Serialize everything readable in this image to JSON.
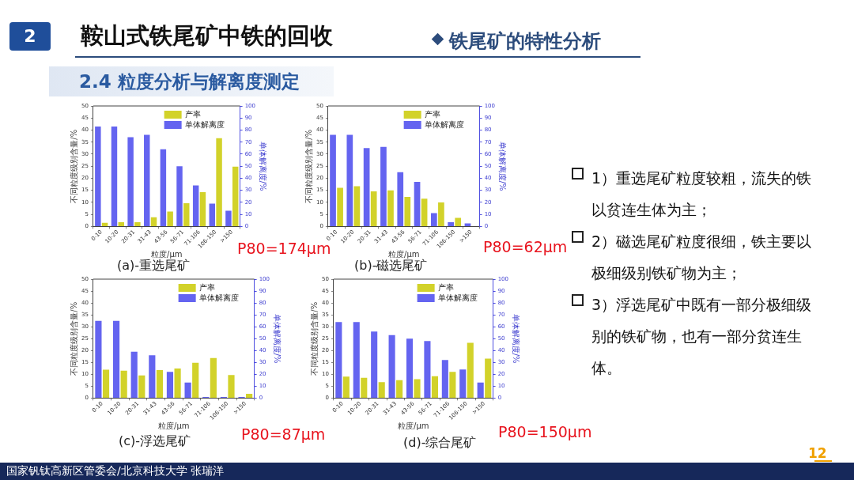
{
  "chart_data": [
    {
      "type": "other",
      "title": "鞍山式铁尾矿中铁的回收",
      "subtitle": "铁尾矿的特性分析",
      "annotations": [
        "2",
        "2.4 粒度分析与解离度测定",
        "1）重选尾矿粒度较粗，流失的铁以贫连生体为主；",
        "2）磁选尾矿粒度很细，铁主要以极细级别铁矿物为主；",
        "3）浮选尾矿中既有一部分极细级别的铁矿物，也有一部分贫连生体。",
        "国家钒钛高新区管委会/北京科技大学 张瑞洋",
        "12"
      ]
    },
    {
      "type": "bar",
      "title": "(a)-重选尾矿",
      "xlabel": "粒度/μm",
      "ylabel": "不同粒度级别含量/%",
      "y2label": "单体解离度/%",
      "categories": [
        "0-10",
        "10-20",
        "20-31",
        "31-43",
        "43-56",
        "56-71",
        "71-106",
        "106-150",
        ">150"
      ],
      "series": [
        {
          "name": "产率",
          "color": "#d2d22a",
          "values": [
            1.5,
            1.8,
            1.8,
            3.8,
            6.2,
            9.6,
            14.2,
            36.6,
            24.8
          ]
        },
        {
          "name": "单体解离度",
          "color": "#6464f0",
          "axis": "y2",
          "values": [
            83,
            83,
            74,
            76,
            64,
            50,
            34,
            19,
            13
          ]
        }
      ],
      "ylim": [
        0,
        50
      ],
      "yticks": [
        0,
        5,
        10,
        15,
        20,
        25,
        30,
        35,
        40,
        45,
        50
      ],
      "y2lim": [
        0,
        100
      ],
      "y2ticks": [
        0,
        10,
        20,
        30,
        40,
        50,
        60,
        70,
        80,
        90,
        100
      ],
      "legend": "top right",
      "grid": false,
      "annotations": [
        "P80=174μm"
      ]
    },
    {
      "type": "bar",
      "title": "(b)-磁选尾矿",
      "xlabel": "粒度/μm",
      "ylabel": "不同粒度级别含量/%",
      "y2label": "单体解离度/%",
      "categories": [
        "0-10",
        "10-20",
        "20-31",
        "31-43",
        "43-56",
        "56-71",
        "71-106",
        "106-150",
        ">150"
      ],
      "series": [
        {
          "name": "产率",
          "color": "#d2d22a",
          "values": [
            16,
            16.7,
            14.6,
            15,
            12.3,
            11.5,
            10,
            3.6,
            0
          ]
        },
        {
          "name": "单体解离度",
          "color": "#6464f0",
          "axis": "y2",
          "values": [
            76,
            76,
            65,
            66,
            45,
            37,
            11,
            3.5,
            2.5
          ]
        }
      ],
      "ylim": [
        0,
        50
      ],
      "yticks": [
        0,
        5,
        10,
        15,
        20,
        25,
        30,
        35,
        40,
        45,
        50
      ],
      "y2lim": [
        0,
        100
      ],
      "y2ticks": [
        0,
        10,
        20,
        30,
        40,
        50,
        60,
        70,
        80,
        90,
        100
      ],
      "legend": "top right",
      "grid": false,
      "annotations": [
        "P80=62μm"
      ]
    },
    {
      "type": "bar",
      "title": "(c)-浮选尾矿",
      "xlabel": "粒度/μm",
      "ylabel": "不同粒度级别含量/%",
      "y2label": "单体解离度/%",
      "categories": [
        "0-10",
        "10-20",
        "20-31",
        "31-43",
        "43-56",
        "56-71",
        "71-106",
        "106-150",
        ">150"
      ],
      "series": [
        {
          "name": "产率",
          "color": "#d2d22a",
          "values": [
            11.9,
            11.5,
            9.5,
            11.8,
            12.4,
            14.8,
            16.8,
            9.7,
            1.8
          ]
        },
        {
          "name": "单体解离度",
          "color": "#6464f0",
          "axis": "y2",
          "values": [
            65,
            65,
            39,
            36,
            22,
            13,
            1,
            1,
            1
          ]
        }
      ],
      "ylim": [
        0,
        50
      ],
      "yticks": [
        0,
        5,
        10,
        15,
        20,
        25,
        30,
        35,
        40,
        45,
        50
      ],
      "y2lim": [
        0,
        100
      ],
      "y2ticks": [
        0,
        10,
        20,
        30,
        40,
        50,
        60,
        70,
        80,
        90,
        100
      ],
      "legend": "top right",
      "grid": false,
      "annotations": [
        "P80=87μm"
      ]
    },
    {
      "type": "bar",
      "title": "(d)-综合尾矿",
      "xlabel": "粒度/μm",
      "ylabel": "不同粒度级别含量/%",
      "y2label": "单体解离度/%",
      "categories": [
        "0-10",
        "10-20",
        "20-31",
        "31-43",
        "43-56",
        "56-71",
        "71-106",
        "106-150",
        ">150"
      ],
      "series": [
        {
          "name": "产率",
          "color": "#d2d22a",
          "values": [
            9,
            8.5,
            6.7,
            7.5,
            7.9,
            9.2,
            11,
            23.2,
            16.6
          ]
        },
        {
          "name": "单体解离度",
          "color": "#6464f0",
          "axis": "y2",
          "values": [
            64,
            64,
            56,
            53,
            50,
            48,
            32,
            24,
            13
          ]
        }
      ],
      "ylim": [
        0,
        50
      ],
      "yticks": [
        0,
        5,
        10,
        15,
        20,
        25,
        30,
        35,
        40,
        45,
        50
      ],
      "y2lim": [
        0,
        100
      ],
      "y2ticks": [
        0,
        10,
        20,
        30,
        40,
        50,
        60,
        70,
        80,
        90,
        100
      ],
      "legend": "top right",
      "grid": false,
      "annotations": [
        "P80=150μm"
      ]
    }
  ]
}
